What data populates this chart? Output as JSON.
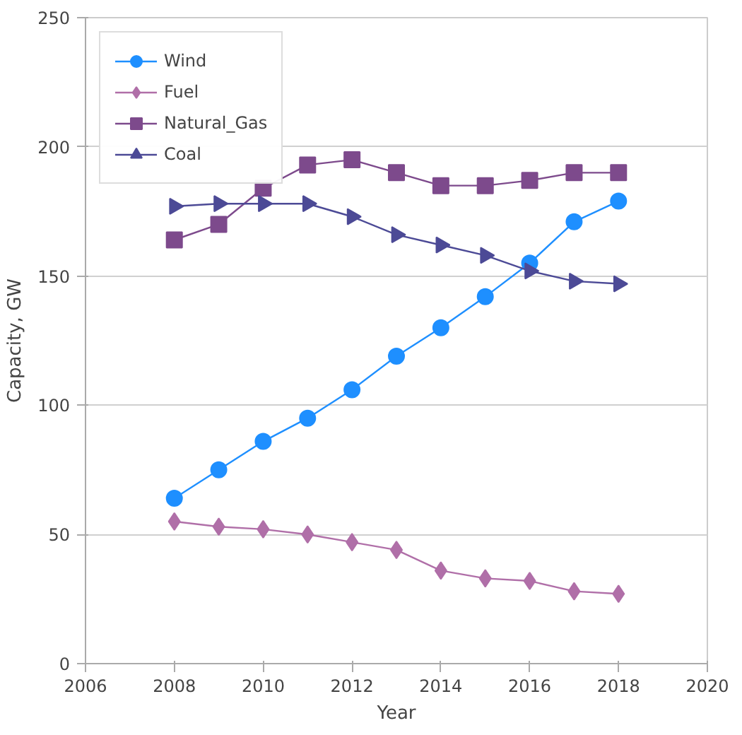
{
  "chart_data": {
    "type": "line",
    "xlabel": "Year",
    "ylabel": "Capacity, GW",
    "x": [
      2008,
      2009,
      2010,
      2011,
      2012,
      2013,
      2014,
      2015,
      2016,
      2017,
      2018
    ],
    "series": [
      {
        "name": "Wind",
        "color": "#1e8fff",
        "marker": "circle",
        "values": [
          64,
          75,
          86,
          95,
          106,
          119,
          130,
          142,
          155,
          171,
          179
        ]
      },
      {
        "name": "Fuel",
        "color": "#b06fa8",
        "marker": "diamond",
        "values": [
          55,
          53,
          52,
          50,
          47,
          44,
          36,
          33,
          32,
          28,
          27
        ]
      },
      {
        "name": "Natural_Gas",
        "color": "#7d4a8c",
        "marker": "square",
        "values": [
          164,
          170,
          184,
          193,
          195,
          190,
          185,
          185,
          187,
          190,
          190
        ]
      },
      {
        "name": "Coal",
        "color": "#4c4a96",
        "marker": "triangle",
        "values": [
          177,
          178,
          178,
          178,
          173,
          166,
          162,
          158,
          152,
          148,
          147
        ]
      }
    ],
    "xlim": [
      2006,
      2020
    ],
    "xticks": [
      2006,
      2008,
      2010,
      2012,
      2014,
      2016,
      2018,
      2020
    ],
    "ylim": [
      0,
      250
    ],
    "yticks": [
      0,
      50,
      100,
      150,
      200,
      250
    ],
    "grid": "y",
    "legend": "top left",
    "line_style": "solid"
  }
}
